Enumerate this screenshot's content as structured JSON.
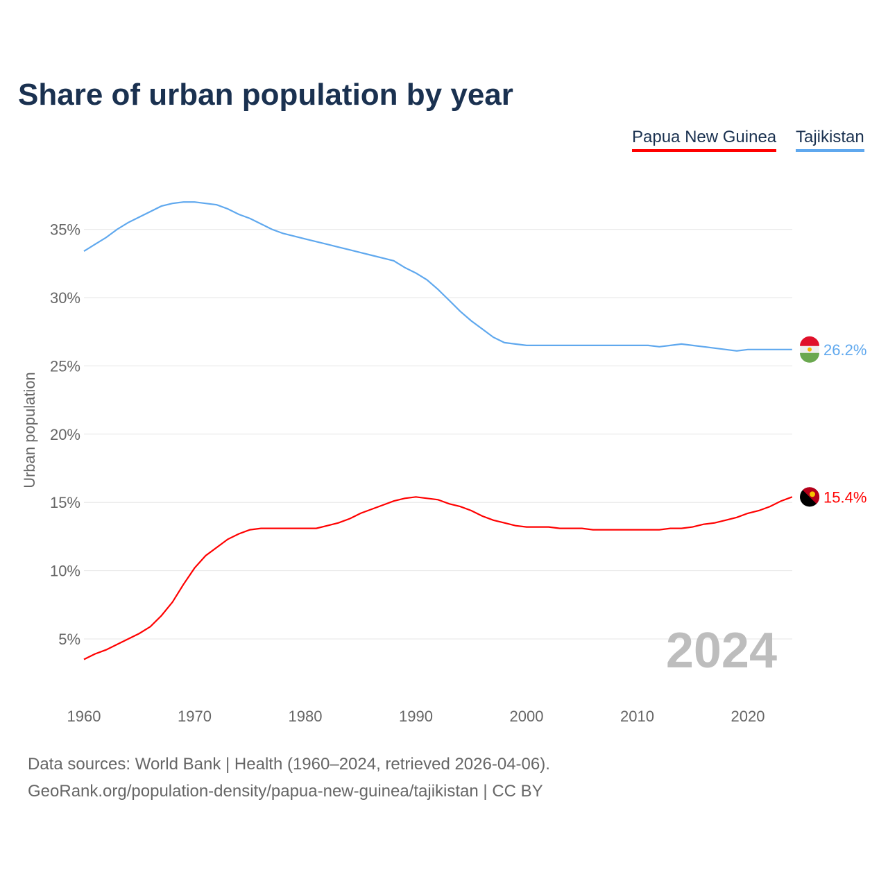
{
  "chart_data": {
    "type": "line",
    "title": "Share of urban population by year",
    "xlabel": "",
    "ylabel": "Urban population",
    "xlim": [
      1960,
      2024
    ],
    "ylim": [
      0,
      38
    ],
    "yticks": [
      5,
      10,
      15,
      20,
      25,
      30,
      35
    ],
    "ytick_labels": [
      "5%",
      "10%",
      "15%",
      "20%",
      "25%",
      "30%",
      "35%"
    ],
    "xticks": [
      1960,
      1970,
      1980,
      1990,
      2000,
      2010,
      2020
    ],
    "xtick_labels": [
      "1960",
      "1970",
      "1980",
      "1990",
      "2000",
      "2010",
      "2020"
    ],
    "grid": true,
    "legend_position": "top-right",
    "year_watermark": "2024",
    "x": [
      1960,
      1961,
      1962,
      1963,
      1964,
      1965,
      1966,
      1967,
      1968,
      1969,
      1970,
      1971,
      1972,
      1973,
      1974,
      1975,
      1976,
      1977,
      1978,
      1979,
      1980,
      1981,
      1982,
      1983,
      1984,
      1985,
      1986,
      1987,
      1988,
      1989,
      1990,
      1991,
      1992,
      1993,
      1994,
      1995,
      1996,
      1997,
      1998,
      1999,
      2000,
      2001,
      2002,
      2003,
      2004,
      2005,
      2006,
      2007,
      2008,
      2009,
      2010,
      2011,
      2012,
      2013,
      2014,
      2015,
      2016,
      2017,
      2018,
      2019,
      2020,
      2021,
      2022,
      2023,
      2024
    ],
    "series": [
      {
        "name": "Papua New Guinea",
        "color": "#ff0000",
        "end_label": "15.4%",
        "values": [
          3.5,
          3.9,
          4.2,
          4.6,
          5.0,
          5.4,
          5.9,
          6.7,
          7.7,
          9.0,
          10.2,
          11.1,
          11.7,
          12.3,
          12.7,
          13.0,
          13.1,
          13.1,
          13.1,
          13.1,
          13.1,
          13.1,
          13.3,
          13.5,
          13.8,
          14.2,
          14.5,
          14.8,
          15.1,
          15.3,
          15.4,
          15.3,
          15.2,
          14.9,
          14.7,
          14.4,
          14.0,
          13.7,
          13.5,
          13.3,
          13.2,
          13.2,
          13.2,
          13.1,
          13.1,
          13.1,
          13.0,
          13.0,
          13.0,
          13.0,
          13.0,
          13.0,
          13.0,
          13.1,
          13.1,
          13.2,
          13.4,
          13.5,
          13.7,
          13.9,
          14.2,
          14.4,
          14.7,
          15.1,
          15.4
        ]
      },
      {
        "name": "Tajikistan",
        "color": "#5fa8ee",
        "end_label": "26.2%",
        "values": [
          33.4,
          33.9,
          34.4,
          35.0,
          35.5,
          35.9,
          36.3,
          36.7,
          36.9,
          37.0,
          37.0,
          36.9,
          36.8,
          36.5,
          36.1,
          35.8,
          35.4,
          35.0,
          34.7,
          34.5,
          34.3,
          34.1,
          33.9,
          33.7,
          33.5,
          33.3,
          33.1,
          32.9,
          32.7,
          32.2,
          31.8,
          31.3,
          30.6,
          29.8,
          29.0,
          28.3,
          27.7,
          27.1,
          26.7,
          26.6,
          26.5,
          26.5,
          26.5,
          26.5,
          26.5,
          26.5,
          26.5,
          26.5,
          26.5,
          26.5,
          26.5,
          26.5,
          26.4,
          26.5,
          26.6,
          26.5,
          26.4,
          26.3,
          26.2,
          26.1,
          26.2,
          26.2,
          26.2,
          26.2,
          26.2
        ]
      }
    ]
  },
  "footer": {
    "line1": "Data sources: World Bank | Health (1960–2024, retrieved 2026-04-06).",
    "line2": "GeoRank.org/population-density/papua-new-guinea/tajikistan | CC BY"
  }
}
